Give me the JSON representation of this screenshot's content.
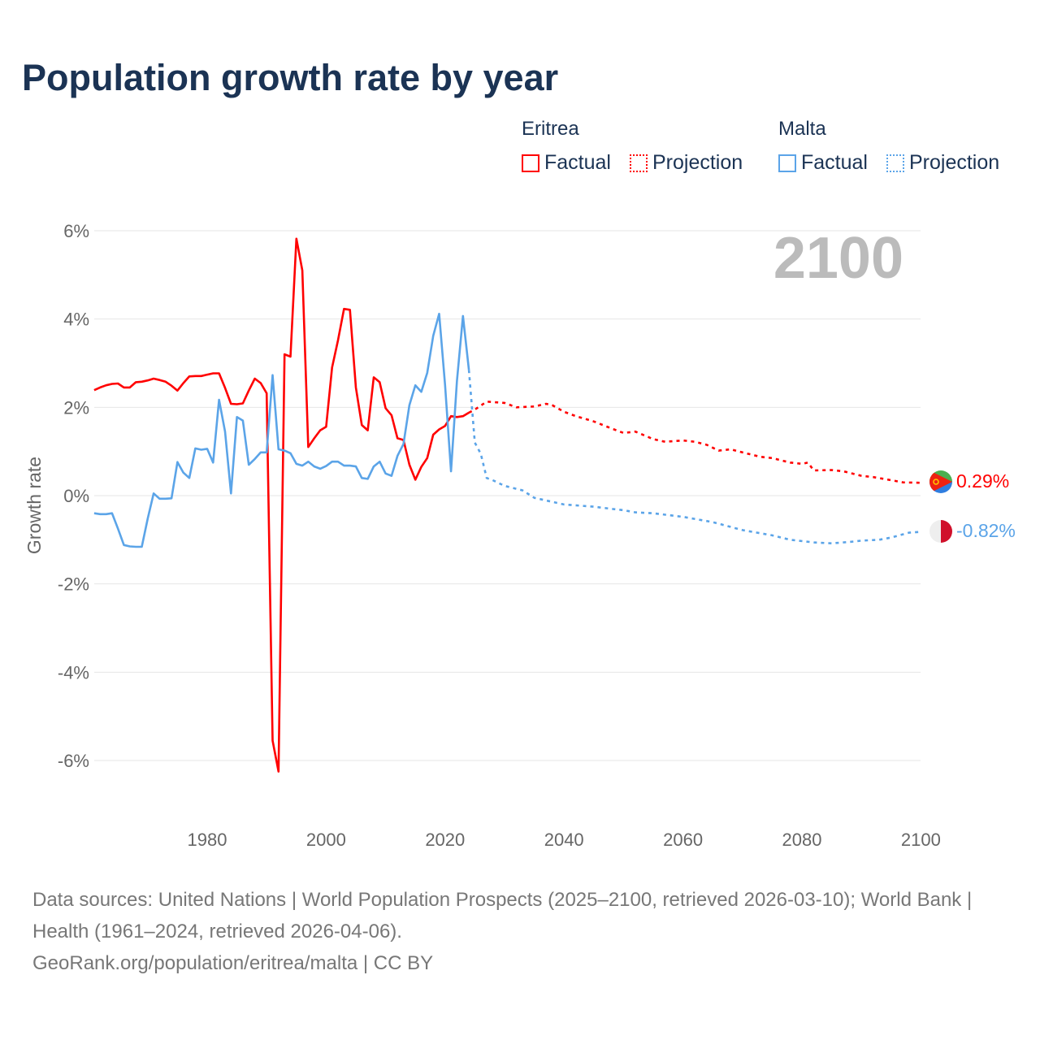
{
  "title": "Population growth rate by year",
  "legend": {
    "groups": [
      {
        "name": "Eritrea",
        "color": "#ff0000",
        "factual": "Factual",
        "projection": "Projection"
      },
      {
        "name": "Malta",
        "color": "#5ba4e8",
        "factual": "Factual",
        "projection": "Projection"
      }
    ]
  },
  "chart_data": {
    "type": "line",
    "title": "Population growth rate by year",
    "xlabel": "",
    "ylabel": "Growth rate",
    "xlim": [
      1961,
      2100
    ],
    "ylim": [
      -7,
      6.5
    ],
    "xticks": [
      "1980",
      "2000",
      "2020",
      "2040",
      "2060",
      "2080",
      "2100"
    ],
    "yticks": [
      "6%",
      "4%",
      "2%",
      "0%",
      "-2%",
      "-4%",
      "-6%"
    ],
    "year_label": "2100",
    "grid": true,
    "series": [
      {
        "name": "Eritrea",
        "segment": "Factual",
        "color": "#ff0000",
        "x": [
          1961,
          1962,
          1963,
          1964,
          1965,
          1966,
          1967,
          1968,
          1969,
          1970,
          1971,
          1972,
          1973,
          1974,
          1975,
          1976,
          1977,
          1978,
          1979,
          1980,
          1981,
          1982,
          1983,
          1984,
          1985,
          1986,
          1987,
          1988,
          1989,
          1990,
          1991,
          1992,
          1993,
          1994,
          1995,
          1996,
          1997,
          1998,
          1999,
          2000,
          2001,
          2002,
          2003,
          2004,
          2005,
          2006,
          2007,
          2008,
          2009,
          2010,
          2011,
          2012,
          2013,
          2014,
          2015,
          2016,
          2017,
          2018,
          2019,
          2020,
          2021,
          2022,
          2023,
          2024
        ],
        "y": [
          2.39,
          2.45,
          2.5,
          2.53,
          2.54,
          2.45,
          2.45,
          2.57,
          2.58,
          2.61,
          2.65,
          2.62,
          2.58,
          2.49,
          2.38,
          2.55,
          2.7,
          2.71,
          2.71,
          2.74,
          2.77,
          2.77,
          2.44,
          2.08,
          2.07,
          2.09,
          2.38,
          2.65,
          2.55,
          2.32,
          -5.55,
          -6.25,
          3.2,
          3.15,
          5.82,
          5.1,
          1.1,
          1.3,
          1.48,
          1.56,
          2.9,
          3.52,
          4.23,
          4.21,
          2.45,
          1.6,
          1.48,
          2.68,
          2.57,
          1.98,
          1.82,
          1.3,
          1.26,
          0.7,
          0.36,
          0.65,
          0.85,
          1.38,
          1.5,
          1.58,
          1.8,
          1.78,
          1.8,
          1.88
        ]
      },
      {
        "name": "Eritrea",
        "segment": "Projection",
        "color": "#ff0000",
        "x": [
          2024,
          2025,
          2027,
          2030,
          2032,
          2035,
          2037,
          2038,
          2040,
          2042,
          2045,
          2048,
          2050,
          2052,
          2055,
          2057,
          2060,
          2062,
          2064,
          2066,
          2068,
          2070,
          2073,
          2075,
          2078,
          2080,
          2081,
          2082,
          2085,
          2087,
          2090,
          2092,
          2095,
          2097,
          2100
        ],
        "y": [
          1.88,
          1.95,
          2.13,
          2.1,
          2.0,
          2.02,
          2.08,
          2.05,
          1.9,
          1.8,
          1.68,
          1.52,
          1.42,
          1.45,
          1.28,
          1.22,
          1.25,
          1.22,
          1.15,
          1.02,
          1.05,
          0.98,
          0.88,
          0.85,
          0.75,
          0.72,
          0.75,
          0.57,
          0.58,
          0.55,
          0.45,
          0.42,
          0.35,
          0.3,
          0.29
        ]
      },
      {
        "name": "Malta",
        "segment": "Factual",
        "color": "#5ba4e8",
        "x": [
          1961,
          1962,
          1963,
          1964,
          1965,
          1966,
          1967,
          1968,
          1969,
          1970,
          1971,
          1972,
          1973,
          1974,
          1975,
          1976,
          1977,
          1978,
          1979,
          1980,
          1981,
          1982,
          1983,
          1984,
          1985,
          1986,
          1987,
          1988,
          1989,
          1990,
          1991,
          1992,
          1993,
          1994,
          1995,
          1996,
          1997,
          1998,
          1999,
          2000,
          2001,
          2002,
          2003,
          2004,
          2005,
          2006,
          2007,
          2008,
          2009,
          2010,
          2011,
          2012,
          2013,
          2014,
          2015,
          2016,
          2017,
          2018,
          2019,
          2020,
          2021,
          2022,
          2023,
          2024
        ],
        "y": [
          -0.4,
          -0.42,
          -0.42,
          -0.4,
          -0.75,
          -1.12,
          -1.15,
          -1.16,
          -1.16,
          -0.52,
          0.05,
          -0.07,
          -0.07,
          -0.06,
          0.76,
          0.52,
          0.4,
          1.07,
          1.04,
          1.06,
          0.75,
          2.17,
          1.45,
          0.05,
          1.78,
          1.7,
          0.7,
          0.83,
          0.98,
          0.98,
          2.73,
          1.05,
          1.02,
          0.96,
          0.72,
          0.68,
          0.77,
          0.66,
          0.61,
          0.67,
          0.77,
          0.77,
          0.68,
          0.68,
          0.66,
          0.4,
          0.38,
          0.66,
          0.77,
          0.5,
          0.45,
          0.9,
          1.17,
          2.05,
          2.5,
          2.35,
          2.78,
          3.62,
          4.12,
          2.5,
          0.55,
          2.6,
          4.07,
          2.85
        ]
      },
      {
        "name": "Malta",
        "segment": "Projection",
        "color": "#5ba4e8",
        "x": [
          2024,
          2025,
          2026,
          2027,
          2028,
          2030,
          2033,
          2035,
          2040,
          2045,
          2048,
          2050,
          2052,
          2055,
          2060,
          2065,
          2070,
          2075,
          2078,
          2082,
          2085,
          2088,
          2090,
          2093,
          2095,
          2098,
          2100
        ],
        "y": [
          2.85,
          1.2,
          0.95,
          0.4,
          0.35,
          0.22,
          0.12,
          -0.05,
          -0.2,
          -0.25,
          -0.3,
          -0.33,
          -0.38,
          -0.4,
          -0.48,
          -0.6,
          -0.78,
          -0.9,
          -1.0,
          -1.06,
          -1.08,
          -1.05,
          -1.02,
          -1.0,
          -0.95,
          -0.84,
          -0.82
        ]
      }
    ],
    "end_labels": [
      {
        "country": "Eritrea",
        "value": "0.29%",
        "color": "#ff0000"
      },
      {
        "country": "Malta",
        "value": "-0.82%",
        "color": "#5ba4e8"
      }
    ]
  },
  "footer": {
    "line1": "Data sources: United Nations | World Population Prospects (2025–2100, retrieved 2026-03-10); World Bank | Health (1961–2024, retrieved 2026-04-06).",
    "line2": "GeoRank.org/population/eritrea/malta | CC BY"
  }
}
